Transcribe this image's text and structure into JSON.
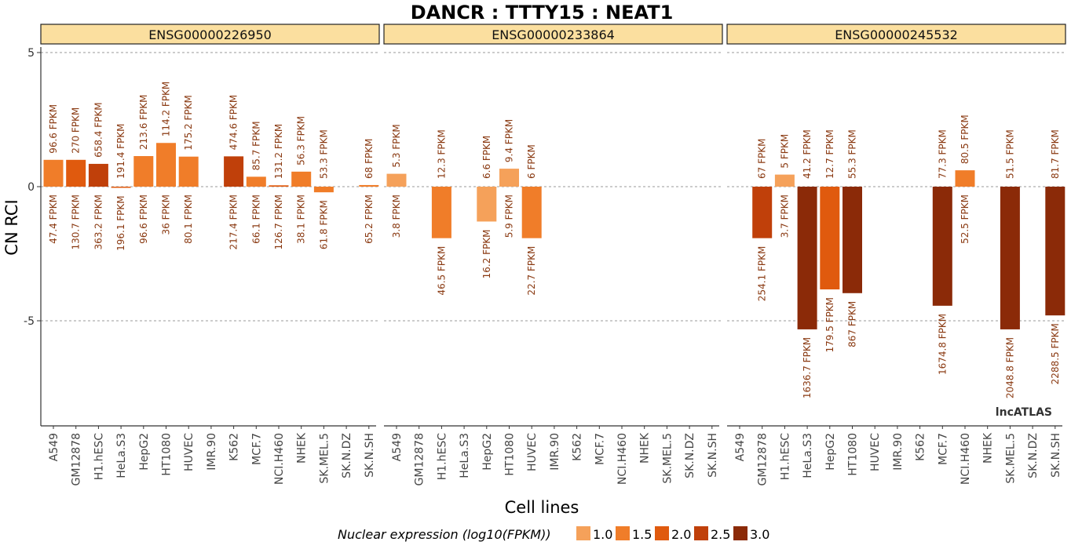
{
  "chart_data": {
    "type": "bar",
    "title": "DANCR : TTTY15 : NEAT1",
    "xlabel": "Cell lines",
    "ylabel": "CN RCI",
    "ylim": [
      -9,
      6
    ],
    "yticks": [
      5,
      0,
      -5
    ],
    "gridlines": [
      5,
      0,
      -5
    ],
    "cell_lines": [
      "A549",
      "GM12878",
      "H1.hESC",
      "HeLa.S3",
      "HepG2",
      "HT1080",
      "HUVEC",
      "IMR.90",
      "K562",
      "MCF.7",
      "NCI.H460",
      "NHEK",
      "SK.MEL.5",
      "SK.N.DZ",
      "SK.N.SH"
    ],
    "legend": {
      "title": "Nuclear expression (log10(FPKM))",
      "placement": "bottom",
      "items": [
        {
          "label": "1.0",
          "color": "#f5a15a"
        },
        {
          "label": "1.5",
          "color": "#f07d29"
        },
        {
          "label": "2.0",
          "color": "#e05a0e"
        },
        {
          "label": "2.5",
          "color": "#c0400a"
        },
        {
          "label": "3.0",
          "color": "#8b2a08"
        }
      ]
    },
    "watermark": "lncATLAS",
    "panels": [
      {
        "name": "ENSG00000226950",
        "bars": [
          {
            "cell": "A549",
            "value": 1.0,
            "nuclear_fpkm": "47.4 FPKM",
            "cyto_fpkm": "96.6 FPKM",
            "color": "#f07d29"
          },
          {
            "cell": "GM12878",
            "value": 1.0,
            "nuclear_fpkm": "130.7 FPKM",
            "cyto_fpkm": "270 FPKM",
            "color": "#e05a0e"
          },
          {
            "cell": "H1.hESC",
            "value": 0.85,
            "nuclear_fpkm": "363.2 FPKM",
            "cyto_fpkm": "658.4 FPKM",
            "color": "#c0400a"
          },
          {
            "cell": "HeLa.S3",
            "value": -0.04,
            "nuclear_fpkm": "196.1 FPKM",
            "cyto_fpkm": "191.4 FPKM",
            "color": "#e05a0e"
          },
          {
            "cell": "HepG2",
            "value": 1.14,
            "nuclear_fpkm": "96.6 FPKM",
            "cyto_fpkm": "213.6 FPKM",
            "color": "#f07d29"
          },
          {
            "cell": "HT1080",
            "value": 1.63,
            "nuclear_fpkm": "36 FPKM",
            "cyto_fpkm": "114.2 FPKM",
            "color": "#f07d29"
          },
          {
            "cell": "HUVEC",
            "value": 1.12,
            "nuclear_fpkm": "80.1 FPKM",
            "cyto_fpkm": "175.2 FPKM",
            "color": "#f07d29"
          },
          {
            "cell": "K562",
            "value": 1.13,
            "nuclear_fpkm": "217.4 FPKM",
            "cyto_fpkm": "474.6 FPKM",
            "color": "#c0400a"
          },
          {
            "cell": "MCF.7",
            "value": 0.37,
            "nuclear_fpkm": "66.1 FPKM",
            "cyto_fpkm": "85.7 FPKM",
            "color": "#f07d29"
          },
          {
            "cell": "NCI.H460",
            "value": 0.05,
            "nuclear_fpkm": "126.7 FPKM",
            "cyto_fpkm": "131.2 FPKM",
            "color": "#e05a0e"
          },
          {
            "cell": "NHEK",
            "value": 0.56,
            "nuclear_fpkm": "38.1 FPKM",
            "cyto_fpkm": "56.3 FPKM",
            "color": "#f07d29"
          },
          {
            "cell": "SK.MEL.5",
            "value": -0.21,
            "nuclear_fpkm": "61.8 FPKM",
            "cyto_fpkm": "53.3 FPKM",
            "color": "#f07d29"
          },
          {
            "cell": "SK.N.SH",
            "value": 0.06,
            "nuclear_fpkm": "65.2 FPKM",
            "cyto_fpkm": "68 FPKM",
            "color": "#f07d29"
          }
        ]
      },
      {
        "name": "ENSG00000233864",
        "bars": [
          {
            "cell": "A549",
            "value": 0.48,
            "nuclear_fpkm": "3.8 FPKM",
            "cyto_fpkm": "5.3 FPKM",
            "color": "#f5a15a"
          },
          {
            "cell": "H1.hESC",
            "value": -1.92,
            "nuclear_fpkm": "46.5 FPKM",
            "cyto_fpkm": "12.3 FPKM",
            "color": "#f07d29"
          },
          {
            "cell": "HepG2",
            "value": -1.3,
            "nuclear_fpkm": "16.2 FPKM",
            "cyto_fpkm": "6.6 FPKM",
            "color": "#f5a15a"
          },
          {
            "cell": "HT1080",
            "value": 0.67,
            "nuclear_fpkm": "5.9 FPKM",
            "cyto_fpkm": "9.4 FPKM",
            "color": "#f5a15a"
          },
          {
            "cell": "HUVEC",
            "value": -1.92,
            "nuclear_fpkm": "22.7 FPKM",
            "cyto_fpkm": "6 FPKM",
            "color": "#f07d29"
          }
        ]
      },
      {
        "name": "ENSG00000245532",
        "bars": [
          {
            "cell": "GM12878",
            "value": -1.92,
            "nuclear_fpkm": "254.1 FPKM",
            "cyto_fpkm": "67 FPKM",
            "color": "#c0400a"
          },
          {
            "cell": "H1.hESC",
            "value": 0.45,
            "nuclear_fpkm": "3.7 FPKM",
            "cyto_fpkm": "5 FPKM",
            "color": "#f5a15a"
          },
          {
            "cell": "HeLa.S3",
            "value": -5.32,
            "nuclear_fpkm": "1636.7 FPKM",
            "cyto_fpkm": "41.2 FPKM",
            "color": "#8b2a08"
          },
          {
            "cell": "HepG2",
            "value": -3.83,
            "nuclear_fpkm": "179.5 FPKM",
            "cyto_fpkm": "12.7 FPKM",
            "color": "#e05a0e"
          },
          {
            "cell": "HT1080",
            "value": -3.97,
            "nuclear_fpkm": "867 FPKM",
            "cyto_fpkm": "55.3 FPKM",
            "color": "#8b2a08"
          },
          {
            "cell": "MCF.7",
            "value": -4.44,
            "nuclear_fpkm": "1674.8 FPKM",
            "cyto_fpkm": "77.3 FPKM",
            "color": "#8b2a08"
          },
          {
            "cell": "NCI.H460",
            "value": 0.61,
            "nuclear_fpkm": "52.5 FPKM",
            "cyto_fpkm": "80.5 FPKM",
            "color": "#f07d29"
          },
          {
            "cell": "SK.MEL.5",
            "value": -5.32,
            "nuclear_fpkm": "2048.8 FPKM",
            "cyto_fpkm": "51.5 FPKM",
            "color": "#8b2a08"
          },
          {
            "cell": "SK.N.SH",
            "value": -4.8,
            "nuclear_fpkm": "2288.5 FPKM",
            "cyto_fpkm": "81.7 FPKM",
            "color": "#8b2a08"
          }
        ]
      }
    ]
  }
}
